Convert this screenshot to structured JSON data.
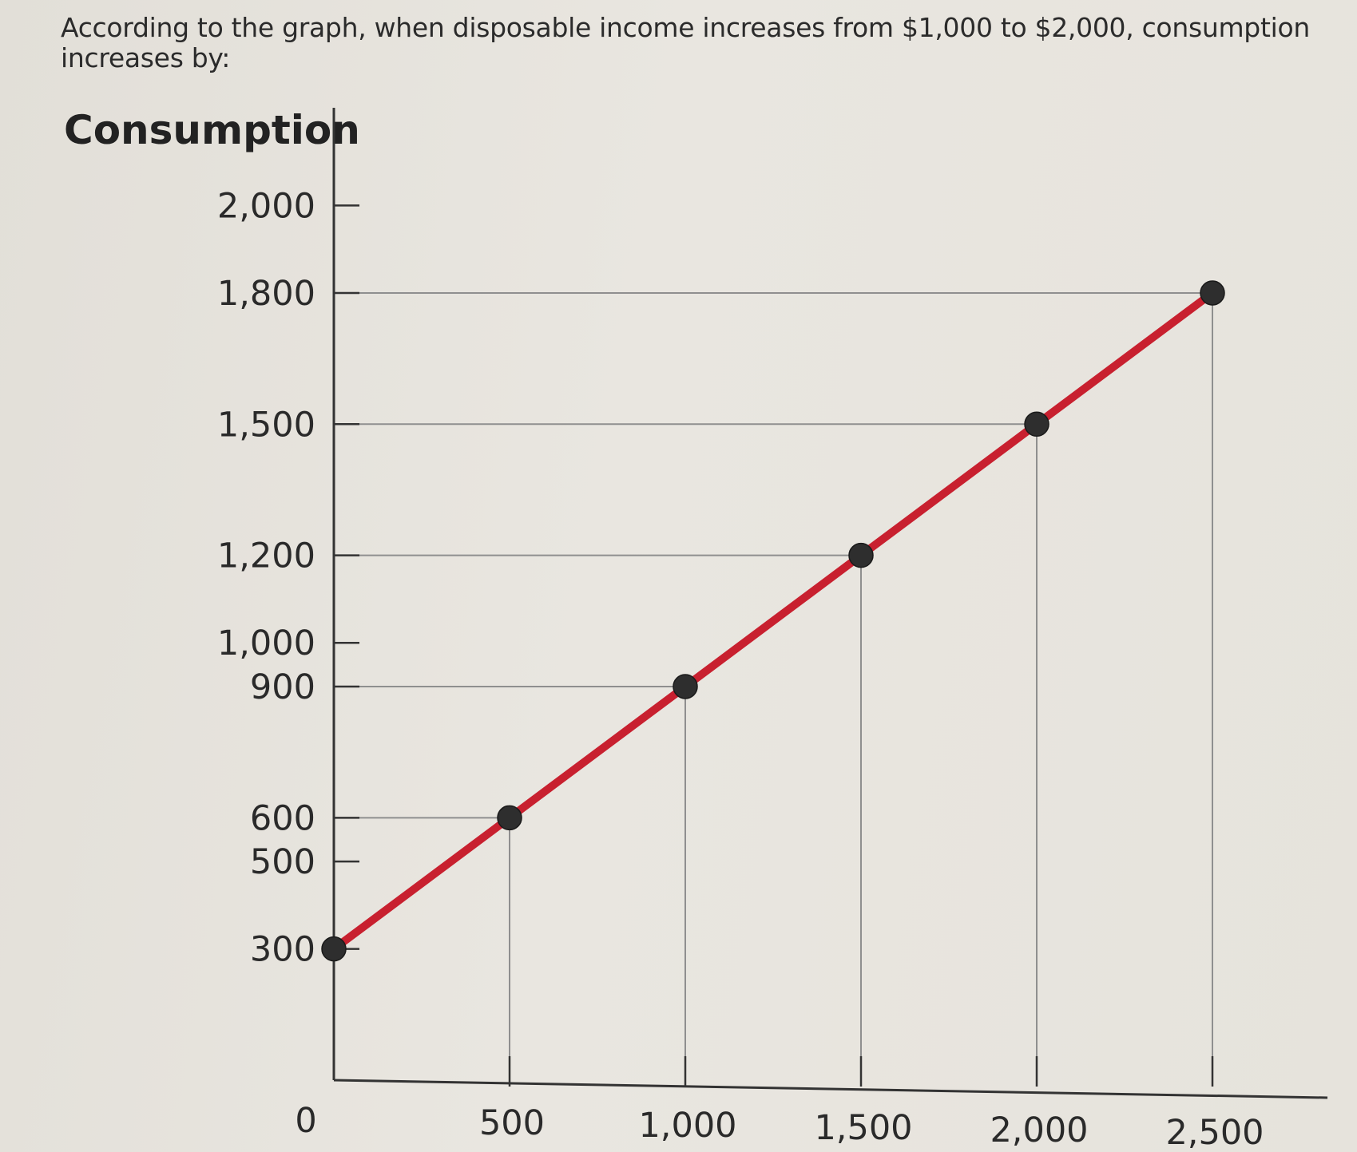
{
  "question": {
    "text": "According to the graph, when disposable income increases from $1,000 to $2,000, consumption increases by:"
  },
  "colors": {
    "line": "#c8202f",
    "point": "#2e2e2e",
    "axis": "#333333",
    "guide": "#8f8f8f"
  },
  "chart_data": {
    "type": "line",
    "title": "",
    "xlabel": "",
    "ylabel": "Consumption",
    "x": [
      0,
      500,
      1000,
      1500,
      2000,
      2500
    ],
    "series": [
      {
        "values": [
          300,
          600,
          900,
          1200,
          1500,
          1800
        ]
      }
    ],
    "x_tick_labels": [
      "0",
      "500",
      "1,000",
      "1,500",
      "2,000",
      "2,500"
    ],
    "y_ticks": [
      300,
      500,
      600,
      900,
      1000,
      1200,
      1500,
      1800,
      2000
    ],
    "y_tick_labels": [
      "300",
      "500",
      "600",
      "900",
      "1,000",
      "1,200",
      "1,500",
      "1,800",
      "2,000"
    ],
    "xlim": [
      0,
      2800
    ],
    "ylim": [
      0,
      2000
    ],
    "grid": false,
    "legend": "none"
  }
}
